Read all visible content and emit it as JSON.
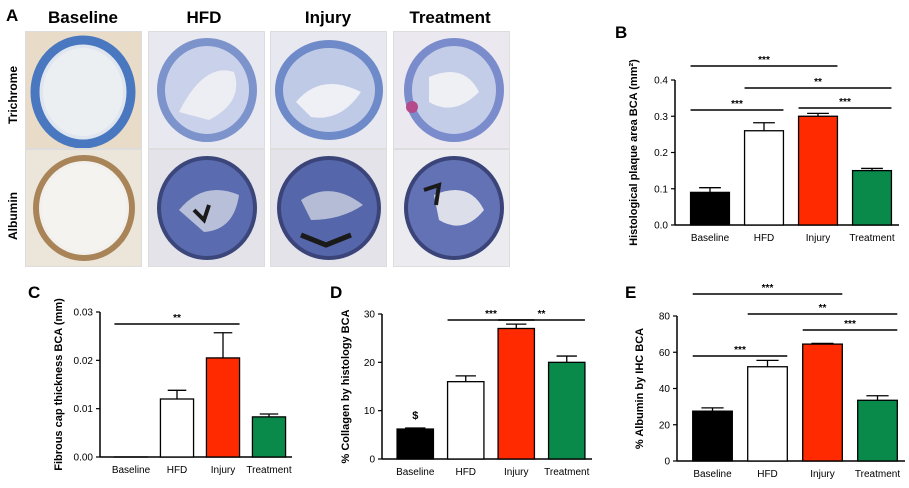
{
  "panel_a": {
    "letter": "A",
    "columns": [
      "Baseline",
      "HFD",
      "Injury",
      "Treatment"
    ],
    "rows": [
      "Trichrome",
      "Albumin"
    ]
  },
  "colors": {
    "baseline": "#000000",
    "hfd": "#ffffff",
    "injury": "#ff2a00",
    "treatment": "#0a8a4a",
    "trichrome_blue": "#6d88c8",
    "albumin_tissue": "#5a6bb0"
  },
  "chart_data": [
    {
      "id": "B",
      "letter": "B",
      "type": "bar",
      "categories": [
        "Baseline",
        "HFD",
        "Injury",
        "Treatment"
      ],
      "values": [
        0.09,
        0.26,
        0.3,
        0.15
      ],
      "errors": [
        0.013,
        0.022,
        0.008,
        0.006
      ],
      "ylabel": "Histological plaque area BCA (mm²)",
      "ylim": [
        0,
        0.4
      ],
      "yticks": [
        "0.0",
        "0.1",
        "0.2",
        "0.3",
        "0.4"
      ],
      "annotations": [
        {
          "from": 0,
          "to": 2,
          "text": "***"
        },
        {
          "from": 1,
          "to": 3,
          "text": "**"
        },
        {
          "from": 0,
          "to": 1,
          "text": "***"
        },
        {
          "from": 2,
          "to": 3,
          "text": "***"
        }
      ]
    },
    {
      "id": "C",
      "letter": "C",
      "type": "bar",
      "categories": [
        "Baseline",
        "HFD",
        "Injury",
        "Treatment"
      ],
      "values": [
        0.0,
        0.012,
        0.0205,
        0.0083
      ],
      "errors": [
        0,
        0.0018,
        0.0052,
        0.0006
      ],
      "ylabel": "Fibrous cap thickness BCA (mm)",
      "ylim": [
        0,
        0.03
      ],
      "yticks": [
        "0.00",
        "0.01",
        "0.02",
        "0.03"
      ],
      "annotations": [
        {
          "from": 0,
          "to": 2,
          "text": "**"
        }
      ]
    },
    {
      "id": "D",
      "letter": "D",
      "type": "bar",
      "categories": [
        "Baseline",
        "HFD",
        "Injury",
        "Treatment"
      ],
      "values": [
        6.2,
        16.0,
        27.0,
        20.0
      ],
      "errors": [
        0.2,
        1.2,
        0.9,
        1.3
      ],
      "ylabel": "% Collagen by histology BCA",
      "ylim": [
        0,
        30
      ],
      "yticks": [
        "0",
        "10",
        "20",
        "30"
      ],
      "bar_labels": [
        "$",
        "",
        "",
        ""
      ],
      "annotations": [
        {
          "from": 1,
          "to": 2,
          "text": "***"
        },
        {
          "from": 2,
          "to": 3,
          "text": "**"
        }
      ]
    },
    {
      "id": "E",
      "letter": "E",
      "type": "bar",
      "categories": [
        "Baseline",
        "HFD",
        "Injury",
        "Treatment"
      ],
      "values": [
        27.5,
        52.0,
        64.5,
        33.5
      ],
      "errors": [
        1.8,
        3.5,
        0.4,
        2.5
      ],
      "ylabel": "% Albumin by IHC BCA",
      "ylim": [
        0,
        80
      ],
      "yticks": [
        "0",
        "20",
        "40",
        "60",
        "80"
      ],
      "annotations": [
        {
          "from": 0,
          "to": 2,
          "text": "***"
        },
        {
          "from": 1,
          "to": 3,
          "text": "**"
        },
        {
          "from": 0,
          "to": 1,
          "text": "***"
        },
        {
          "from": 2,
          "to": 3,
          "text": "***"
        }
      ]
    }
  ]
}
